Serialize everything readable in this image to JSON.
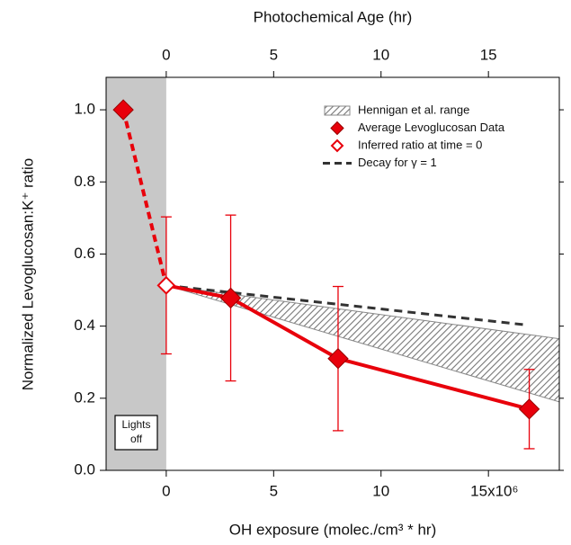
{
  "chart_data": {
    "type": "scatter",
    "title": "Photochemical Age (hr)",
    "xlabel": "OH exposure (molec./cm³ * hr)",
    "ylabel": "Normalized Levoglucosan:K⁺ ratio",
    "xlim": [
      -2800000,
      18300000
    ],
    "xticks": [
      0,
      {
        "value": 5000000,
        "label": "5"
      },
      {
        "value": 10000000,
        "label": "10"
      },
      {
        "value": 15000000,
        "label": "15x10⁶"
      }
    ],
    "x2lim": [
      -2.8,
      18.3
    ],
    "x2ticks": [
      0,
      5,
      10,
      15
    ],
    "ylim": [
      0,
      1.09
    ],
    "yticks": [
      {
        "value": 0,
        "label": "0.0"
      },
      0.2,
      0.4,
      0.6,
      0.8,
      {
        "value": 1,
        "label": "1.0"
      }
    ],
    "annotation": [
      "Lights",
      "off"
    ],
    "legend": "upper right",
    "series": [
      {
        "name": "Hennigan et al. range",
        "color": "#888888",
        "x": [
          0,
          18300000
        ],
        "values": [
          0.513,
          0.365
        ],
        "lower": [
          0.513,
          0.19
        ]
      },
      {
        "name": "Average Levoglucosan Data",
        "color": "#e8000b",
        "x": [
          -2000000,
          3000000,
          8000000,
          16900000
        ],
        "values": [
          1.0,
          0.478,
          0.31,
          0.17
        ],
        "errors": [
          null,
          0.23,
          0.2,
          0.11
        ]
      },
      {
        "name": "Inferred ratio at time = 0",
        "color": "#e8000b",
        "x": [
          0
        ],
        "values": [
          0.513
        ],
        "errors": [
          0.19
        ]
      },
      {
        "name": "Decay for γ = 1",
        "color": "#333333",
        "x": [
          0,
          16800000
        ],
        "values": [
          0.513,
          0.403
        ]
      }
    ]
  }
}
